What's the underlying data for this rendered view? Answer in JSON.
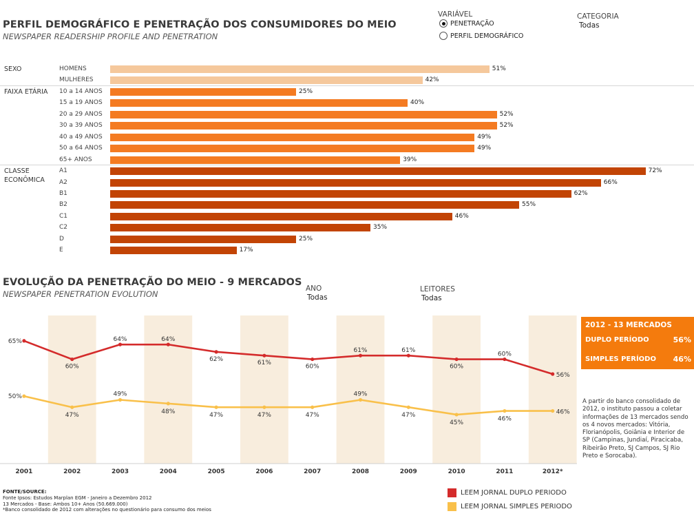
{
  "profile": {
    "title": "PERFIL DEMOGRÁFICO E PENETRAÇÃO DOS CONSUMIDORES DO MEIO",
    "subtitle": "NEWSPAPER READERSHIP PROFILE AND PENETRATION"
  },
  "controls": {
    "variavel_label": "VARIÁVEL",
    "variavel_options": [
      "PENETRAÇÃO",
      "PERFIL DEMOGRÁFICO"
    ],
    "variavel_selected": "PENETRAÇÃO",
    "categoria_label": "CATEGORIA",
    "categoria_value": "Todas"
  },
  "evolution": {
    "title": "EVOLUÇÃO DA PENETRAÇÃO DO MEIO - 9 MERCADOS",
    "subtitle": "NEWSPAPER PENETRATION EVOLUTION",
    "ano_label": "ANO",
    "ano_value": "Todas",
    "leitores_label": "LEITORES",
    "leitores_value": "Todas"
  },
  "panel": {
    "title": "2012 - 13 MERCADOS",
    "duplo_label": "DUPLO PERÍODO",
    "duplo_value": "56%",
    "simples_label": "SIMPLES PERÍODO",
    "simples_value": "46%"
  },
  "note": "A partir do banco consolidado de 2012, o instituto passou a coletar informações de 13 mercados sendo os 4 novos mercados: Vitória, Florianópolis, Goiânia e Interior de SP (Campinas, Jundiaí, Piracicaba, Ribeirão Preto, SJ Campos, SJ Rio Preto e Sorocaba).",
  "source": {
    "heading": "FONTE/SOURCE:",
    "line1": "Fonte Ipsos: Estudos Marplan EGM - Janeiro a Dezembro 2012",
    "line2": "13 Mercados - Base: Ambos 10+ Anos (50.669.000)",
    "line3": "*Banco consolidado de 2012 com alterações no questionário para consumo dos meios"
  },
  "legend": [
    "LEEM JORNAL DUPLO PERIODO",
    "LEEM JORNAL SIMPLES PERIODO"
  ],
  "chart_data": [
    {
      "type": "bar",
      "orientation": "horizontal",
      "value_format": "percent",
      "xlim": [
        0,
        100
      ],
      "groups": [
        {
          "label": "SEXO",
          "color": "#f5c89c",
          "categories": [
            "HOMENS",
            "MULHERES"
          ],
          "values": [
            51,
            42
          ]
        },
        {
          "label": "FAIXA ETÁRIA",
          "color": "#f47b22",
          "categories": [
            "10 a 14 ANOS",
            "15 a 19 ANOS",
            "20 a 29 ANOS",
            "30 a 39 ANOS",
            "40 a 49 ANOS",
            "50 a 64 ANOS",
            "65+ ANOS"
          ],
          "values": [
            25,
            40,
            52,
            52,
            49,
            49,
            39
          ]
        },
        {
          "label": "CLASSE ECONÔMICA",
          "color": "#c24405",
          "categories": [
            "A1",
            "A2",
            "B1",
            "B2",
            "C1",
            "C2",
            "D",
            "E"
          ],
          "values": [
            72,
            66,
            62,
            55,
            46,
            35,
            25,
            17
          ]
        }
      ]
    },
    {
      "type": "line",
      "x": [
        "2001",
        "2002",
        "2003",
        "2004",
        "2005",
        "2006",
        "2007",
        "2008",
        "2009",
        "2010",
        "2011",
        "2012*"
      ],
      "ylim": [
        40,
        70
      ],
      "series": [
        {
          "name": "LEEM JORNAL DUPLO PERIODO",
          "color": "#d42b2b",
          "values": [
            65,
            60,
            64,
            64,
            62,
            61,
            60,
            61,
            61,
            60,
            60,
            56
          ]
        },
        {
          "name": "LEEM JORNAL SIMPLES PERIODO",
          "color": "#f9c04a",
          "values": [
            50,
            47,
            49,
            48,
            47,
            47,
            47,
            49,
            47,
            45,
            46,
            46
          ]
        }
      ],
      "shaded_columns": [
        "2002",
        "2004",
        "2006",
        "2008",
        "2010",
        "2012*"
      ],
      "shade_color": "#f8eddd"
    }
  ]
}
